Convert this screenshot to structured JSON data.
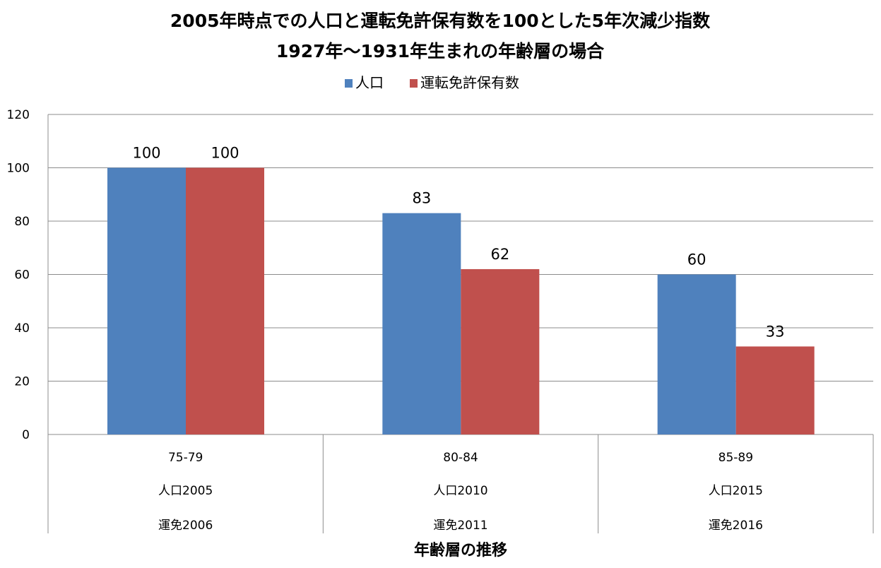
{
  "chart_data": {
    "type": "bar",
    "title": [
      "2005年時点での人口と運転免許保有数を100とした5年次減少指数",
      "1927年～1931年生まれの年齢層の場合"
    ],
    "xlabel": "年齢層の推移",
    "ylabel": "",
    "ylim": [
      0,
      120
    ],
    "yticks": [
      0,
      20,
      40,
      60,
      80,
      100,
      120
    ],
    "grid": true,
    "legend_position": "top-center",
    "categories": [
      [
        "75-79",
        "人口2005",
        "運免2006"
      ],
      [
        "80-84",
        "人口2010",
        "運免2011"
      ],
      [
        "85-89",
        "人口2015",
        "運免2016"
      ]
    ],
    "series": [
      {
        "name": "人口",
        "color": "#4F81BD",
        "values": [
          100,
          83,
          60
        ]
      },
      {
        "name": "運転免許保有数",
        "color": "#C0504D",
        "values": [
          100,
          62,
          33
        ]
      }
    ]
  }
}
